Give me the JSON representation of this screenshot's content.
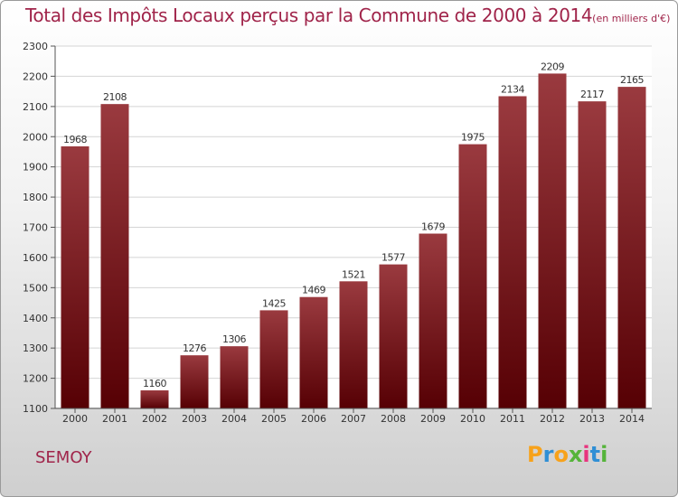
{
  "header": {
    "title": "Total des Impôts Locaux perçus par la Commune de 2000 à 2014",
    "unit": "(en milliers d'€)"
  },
  "footer": {
    "commune": "SEMOY",
    "brand": [
      "P",
      "r",
      "o",
      "x",
      "i",
      "t",
      "i"
    ],
    "brand_colors": [
      "#f7a21b",
      "#2f8fd5",
      "#f7a21b",
      "#55b43a",
      "#e8347e",
      "#2f8fd5",
      "#55b43a"
    ]
  },
  "chart_data": {
    "type": "bar",
    "title": "Total des Impôts Locaux perçus par la Commune de 2000 à 2014",
    "categories": [
      "2000",
      "2001",
      "2002",
      "2003",
      "2004",
      "2005",
      "2006",
      "2007",
      "2008",
      "2009",
      "2010",
      "2011",
      "2012",
      "2013",
      "2014"
    ],
    "values": [
      1968,
      2108,
      1160,
      1276,
      1306,
      1425,
      1469,
      1521,
      1577,
      1679,
      1975,
      2134,
      2209,
      2117,
      2165
    ],
    "ylim": [
      1100,
      2300
    ],
    "yticks": [
      1100,
      1200,
      1300,
      1400,
      1500,
      1600,
      1700,
      1800,
      1900,
      2000,
      2100,
      2200,
      2300
    ],
    "grid": true,
    "colors": {
      "bar_top": "#9a3a3f",
      "bar_bottom": "#560004",
      "grid": "#d4d4d4",
      "axis": "#555555"
    }
  }
}
